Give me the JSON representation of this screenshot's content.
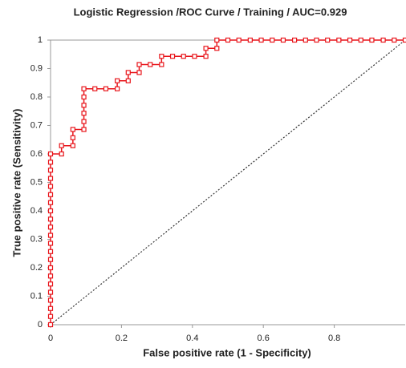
{
  "chart_data": {
    "type": "line",
    "title": "Logistic Regression /ROC Curve / Training / AUC=0.929",
    "x_label": "False positive rate (1 - Specificity)",
    "y_label": "True positive rate (Sensitivity)",
    "xlim": [
      0,
      1
    ],
    "ylim": [
      0,
      1
    ],
    "xticks": [
      0,
      0.2,
      0.4,
      0.6,
      0.8
    ],
    "yticks": [
      0,
      0.1,
      0.2,
      0.3,
      0.4,
      0.5,
      0.6,
      0.7,
      0.8,
      0.9,
      1
    ],
    "series": [
      {
        "color": "#e8141a",
        "marker": "square",
        "x": [
          0,
          0,
          0,
          0,
          0,
          0,
          0,
          0,
          0,
          0,
          0,
          0,
          0,
          0,
          0,
          0,
          0,
          0,
          0,
          0,
          0,
          0,
          0.031,
          0.031,
          0.063,
          0.063,
          0.063,
          0.094,
          0.094,
          0.094,
          0.094,
          0.094,
          0.094,
          0.125,
          0.156,
          0.188,
          0.188,
          0.219,
          0.219,
          0.25,
          0.25,
          0.281,
          0.313,
          0.313,
          0.344,
          0.375,
          0.406,
          0.438,
          0.438,
          0.469,
          0.469,
          0.5,
          0.531,
          0.563,
          0.594,
          0.625,
          0.656,
          0.688,
          0.719,
          0.75,
          0.781,
          0.813,
          0.844,
          0.875,
          0.906,
          0.938,
          0.969,
          1
        ],
        "values": [
          0,
          0.029,
          0.057,
          0.086,
          0.114,
          0.143,
          0.171,
          0.2,
          0.229,
          0.257,
          0.286,
          0.314,
          0.343,
          0.371,
          0.4,
          0.429,
          0.457,
          0.486,
          0.514,
          0.543,
          0.571,
          0.6,
          0.6,
          0.629,
          0.629,
          0.657,
          0.686,
          0.686,
          0.714,
          0.743,
          0.771,
          0.8,
          0.829,
          0.829,
          0.829,
          0.829,
          0.857,
          0.857,
          0.886,
          0.886,
          0.914,
          0.914,
          0.914,
          0.943,
          0.943,
          0.943,
          0.943,
          0.943,
          0.971,
          0.971,
          1,
          1,
          1,
          1,
          1,
          1,
          1,
          1,
          1,
          1,
          1,
          1,
          1,
          1,
          1,
          1,
          1,
          1
        ]
      },
      {
        "color": "#333333",
        "dash": true,
        "x": [
          0,
          1
        ],
        "values": [
          0,
          1
        ]
      }
    ]
  }
}
